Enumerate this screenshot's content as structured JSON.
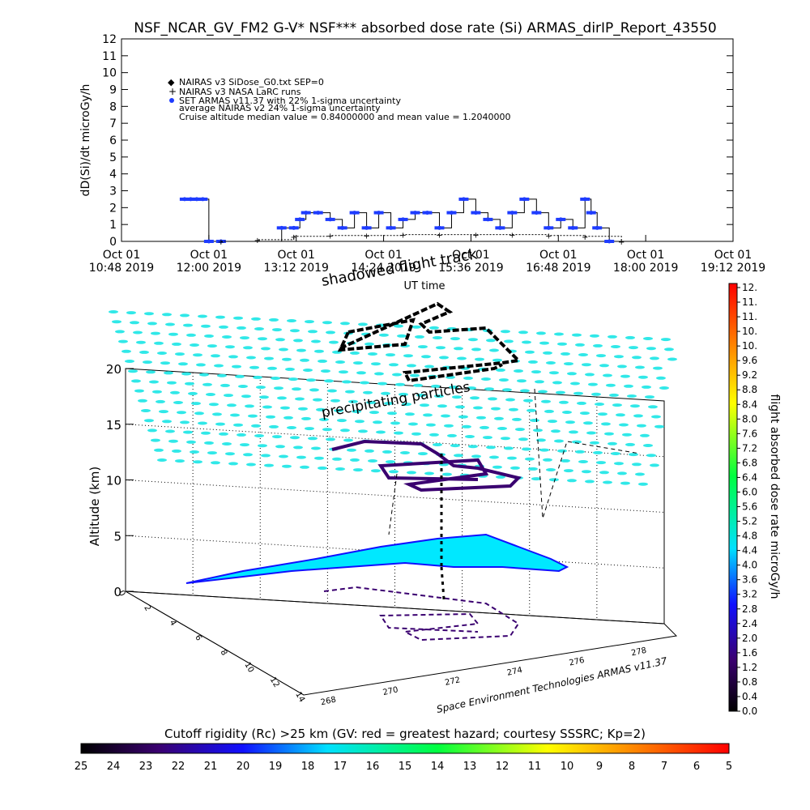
{
  "chart_data": [
    {
      "type": "line",
      "title": "NSF_NCAR_GV_FM2 G-V* NSF*** absorbed dose rate (Si) ARMAS_dirIP_Report_43550",
      "ylabel": "dD(Si)/dt microGy/h",
      "xlabel": "UT time",
      "ylim": [
        0,
        12
      ],
      "yticks": [
        "0",
        "1",
        "2",
        "3",
        "4",
        "5",
        "6",
        "7",
        "8",
        "9",
        "10",
        "11",
        "12"
      ],
      "xticks": [
        {
          "d": "Oct 01",
          "t": "10:48 2019"
        },
        {
          "d": "Oct 01",
          "t": "12:00 2019"
        },
        {
          "d": "Oct 01",
          "t": "13:12 2019"
        },
        {
          "d": "Oct 01",
          "t": "14:24 2019"
        },
        {
          "d": "Oct 01",
          "t": "15:36 2019"
        },
        {
          "d": "Oct 01",
          "t": "16:48 2019"
        },
        {
          "d": "Oct 01",
          "t": "18:00 2019"
        },
        {
          "d": "Oct 01",
          "t": "19:12 2019"
        }
      ],
      "legend": [
        "NAIRAS v3 SiDose_G0.txt SEP=0",
        "NAIRAS v3 NASA LaRC runs",
        "SET ARMAS v11.37 with 22% 1-sigma uncertainty",
        "average NAIRAS v2 24% 1-sigma uncertainty",
        "Cruise altitude median value = 0.84000000 and mean value = 1.2040000"
      ],
      "legend_position": "top-left",
      "series": [
        {
          "name": "SET ARMAS v11.37 with 22% 1-sigma uncertainty",
          "color": "#1e3cff",
          "x": [
            "11:40",
            "11:45",
            "11:50",
            "11:55",
            "12:00",
            "12:10",
            "13:00",
            "13:10",
            "13:15",
            "13:20",
            "13:30",
            "13:40",
            "13:50",
            "14:00",
            "14:10",
            "14:20",
            "14:30",
            "14:40",
            "14:50",
            "15:00",
            "15:10",
            "15:20",
            "15:30",
            "15:40",
            "15:50",
            "16:00",
            "16:10",
            "16:20",
            "16:30",
            "16:40",
            "16:50",
            "17:00",
            "17:10",
            "17:15",
            "17:20",
            "17:30"
          ],
          "values": [
            2.5,
            2.5,
            2.5,
            2.5,
            0.0,
            0.0,
            0.8,
            0.8,
            1.3,
            1.7,
            1.7,
            1.3,
            0.8,
            1.7,
            0.8,
            1.7,
            0.8,
            1.3,
            1.7,
            1.7,
            0.8,
            1.7,
            2.5,
            1.7,
            1.3,
            0.8,
            1.7,
            2.5,
            1.7,
            0.8,
            1.3,
            0.8,
            2.5,
            1.7,
            0.8,
            0.0
          ]
        },
        {
          "name": "NAIRAS v3 NASA LaRC runs",
          "color": "#000000",
          "x": [
            "12:10",
            "12:40",
            "13:10",
            "13:40",
            "14:10",
            "14:40",
            "15:10",
            "15:40",
            "16:10",
            "16:40",
            "17:10",
            "17:40"
          ],
          "values": [
            0.0,
            0.1,
            0.3,
            0.35,
            0.35,
            0.4,
            0.4,
            0.4,
            0.4,
            0.35,
            0.3,
            0.0
          ]
        }
      ]
    },
    {
      "type": "surface3d",
      "zlabel": "Altitude (km)",
      "zticks": [
        "0",
        "5",
        "10",
        "15",
        "20"
      ],
      "latticks": [
        "0",
        "2",
        "4",
        "6",
        "8",
        "10",
        "12",
        "14"
      ],
      "lonticks": [
        "268",
        "270",
        "272",
        "274",
        "276",
        "278"
      ],
      "annotations": [
        "shadowed flight track",
        "precipitating particles"
      ],
      "credit": "Space Environment Technologies ARMAS v11.37"
    },
    {
      "type": "colorbar",
      "orientation": "vertical",
      "label": "flight absorbed dose rate microGy/h",
      "ticks": [
        "0.0",
        "0.4",
        "0.8",
        "1.2",
        "1.6",
        "2.0",
        "2.4",
        "2.8",
        "3.2",
        "3.6",
        "4.0",
        "4.4",
        "4.8",
        "5.2",
        "5.6",
        "6.0",
        "6.4",
        "6.8",
        "7.2",
        "7.6",
        "8.0",
        "8.4",
        "8.8",
        "9.2",
        "9.6",
        "10.",
        "10.",
        "11.",
        "11.",
        "12."
      ]
    },
    {
      "type": "colorbar",
      "orientation": "horizontal",
      "label": "Cutoff rigidity (Rc) >25 km (GV: red = greatest hazard; courtesy SSSRC; Kp=2)",
      "ticks": [
        "25",
        "24",
        "23",
        "22",
        "21",
        "20",
        "19",
        "18",
        "17",
        "16",
        "15",
        "14",
        "13",
        "12",
        "11",
        "10",
        "9",
        "8",
        "7",
        "6",
        "5"
      ]
    }
  ]
}
